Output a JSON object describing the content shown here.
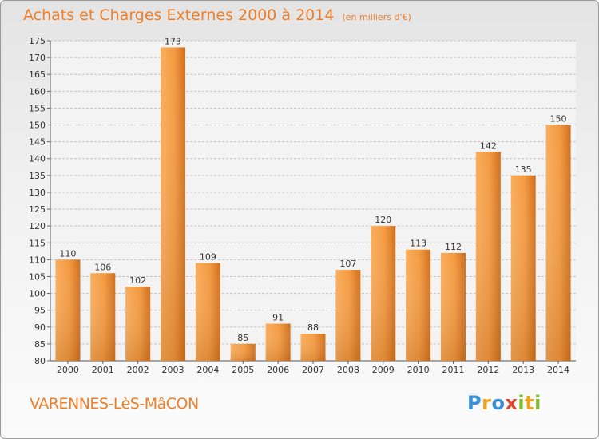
{
  "header": {
    "title": "Achats et Charges Externes 2000 à 2014",
    "unit": "(en milliers d'€)"
  },
  "footer": {
    "place": "VARENNES-LèS-MâCON",
    "brand": "Proxiti"
  },
  "colors": {
    "accent": "#ee7f28",
    "bar_light": "#f7a350",
    "bar_dark": "#c96a1a"
  },
  "chart_data": {
    "type": "bar",
    "title": "Achats et Charges Externes 2000 à 2014",
    "subtitle": "(en milliers d'€)",
    "xlabel": "",
    "ylabel": "",
    "categories": [
      "2000",
      "2001",
      "2002",
      "2003",
      "2004",
      "2005",
      "2006",
      "2007",
      "2008",
      "2009",
      "2010",
      "2011",
      "2012",
      "2013",
      "2014"
    ],
    "values": [
      110,
      106,
      102,
      173,
      109,
      85,
      91,
      88,
      107,
      120,
      113,
      112,
      142,
      135,
      150
    ],
    "ylim": [
      80,
      175
    ],
    "yticks": [
      80,
      85,
      90,
      95,
      100,
      105,
      110,
      115,
      120,
      125,
      130,
      135,
      140,
      145,
      150,
      155,
      160,
      165,
      170,
      175
    ],
    "grid": true,
    "data_labels": true
  }
}
